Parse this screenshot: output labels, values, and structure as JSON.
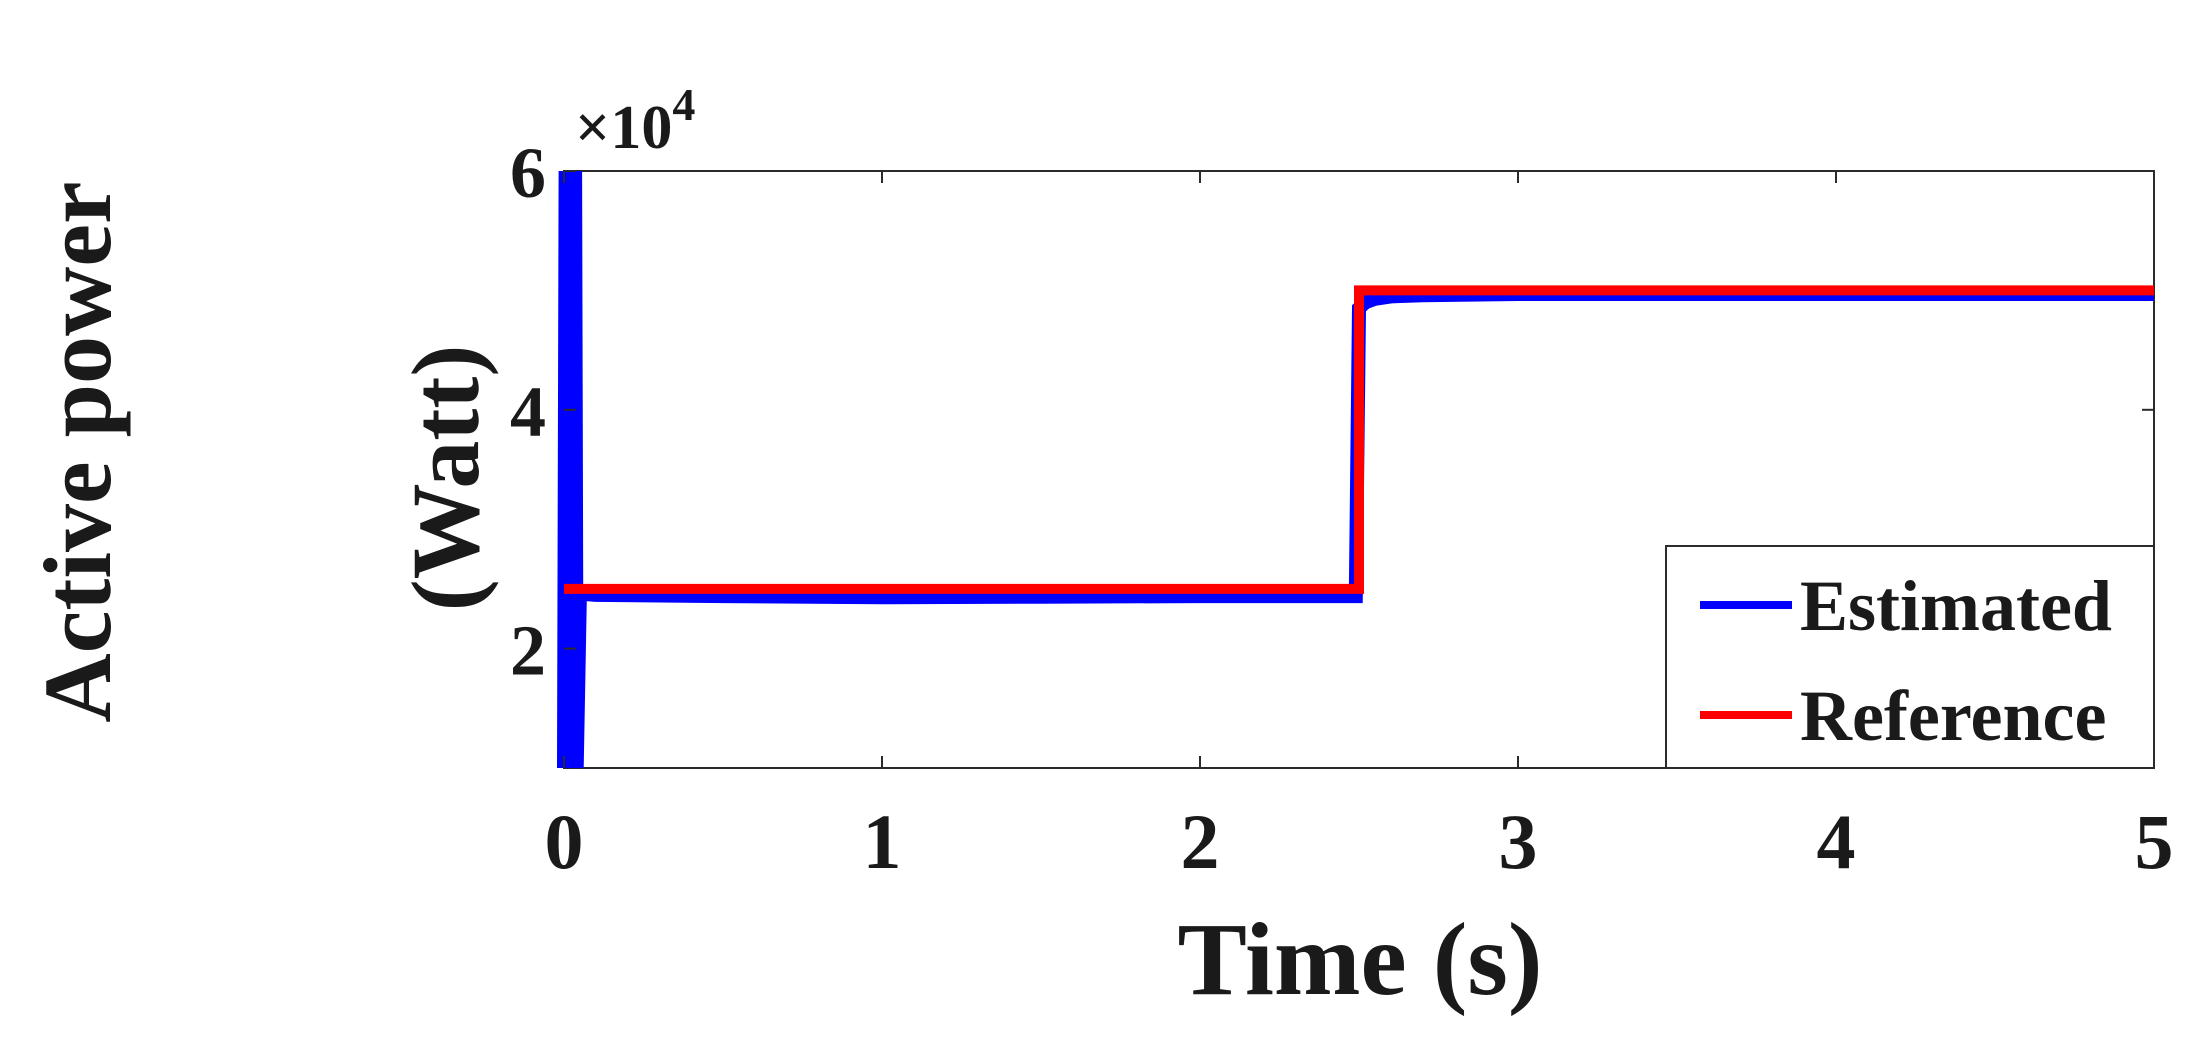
{
  "chart_data": {
    "type": "line",
    "title": "",
    "ylabel_line1": "Active power",
    "ylabel_line2": "(Watt)",
    "xlabel": "Time (s)",
    "y_exponent_base": "×10",
    "y_exponent_power": "4",
    "xlim": [
      0,
      5
    ],
    "ylim": [
      10000,
      60000
    ],
    "xticks": [
      0,
      1,
      2,
      3,
      4,
      5
    ],
    "xtick_labels": [
      "0",
      "1",
      "2",
      "3",
      "4",
      "5"
    ],
    "yticks": [
      20000,
      40000,
      60000
    ],
    "ytick_labels": [
      "2",
      "4",
      "6"
    ],
    "grid": false,
    "legend_position": "bottom-right",
    "series": [
      {
        "name": "Estimated",
        "color": "#0000ff",
        "x": [
          0,
          0.005,
          0.01,
          0.015,
          0.02,
          0.025,
          0.03,
          0.035,
          0.04,
          0.05,
          0.1,
          0.5,
          1.0,
          1.5,
          2.0,
          2.49,
          2.5,
          2.52,
          2.55,
          2.6,
          2.7,
          3.0,
          3.5,
          4.0,
          4.5,
          5.0
        ],
        "y": [
          10000,
          60000,
          10000,
          60000,
          10000,
          60000,
          10000,
          60000,
          10000,
          24600,
          24500,
          24400,
          24300,
          24350,
          24400,
          24400,
          48500,
          49000,
          49300,
          49500,
          49600,
          49700,
          49700,
          49700,
          49700,
          49700
        ]
      },
      {
        "name": "Reference",
        "color": "#ff0000",
        "x": [
          0,
          2.5,
          2.5,
          5.0
        ],
        "y": [
          25000,
          25000,
          50000,
          50000
        ]
      }
    ]
  }
}
